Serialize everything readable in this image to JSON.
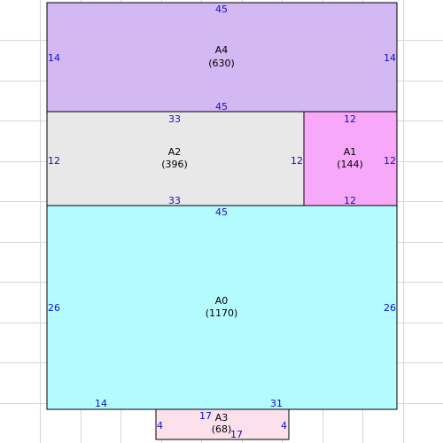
{
  "colors": {
    "grid": "#d6d6d6",
    "outline": "#000000",
    "dimension_text": "#1010c8",
    "A4": "#d4b8f4",
    "A2": "#e8e8e8",
    "A1": "#f8a8f8",
    "A0": "#b4fbff",
    "A3": "#fce0ec"
  },
  "areas": [
    {
      "id": "A4",
      "name": "A4",
      "size": "(630)"
    },
    {
      "id": "A2",
      "name": "A2",
      "size": "(396)"
    },
    {
      "id": "A1",
      "name": "A1",
      "size": "(144)"
    },
    {
      "id": "A0",
      "name": "A0",
      "size": "(1170)"
    },
    {
      "id": "A3",
      "name": "A3",
      "size": "(68)"
    }
  ],
  "dimensions": {
    "a4_top": "45",
    "a4_bottom": "45",
    "a4_left": "14",
    "a4_right": "14",
    "a2_top": "33",
    "a2_bottom": "33",
    "a2_left": "12",
    "a2_right": "12",
    "a1_top": "12",
    "a1_bottom": "12",
    "a1_right": "12",
    "a0_top": "45",
    "a0_left": "26",
    "a0_right": "26",
    "a0_bottom_left": "14",
    "a0_bottom_right": "31",
    "a3_top": "17",
    "a3_bottom": "17",
    "a3_left": "4",
    "a3_right": "4"
  }
}
